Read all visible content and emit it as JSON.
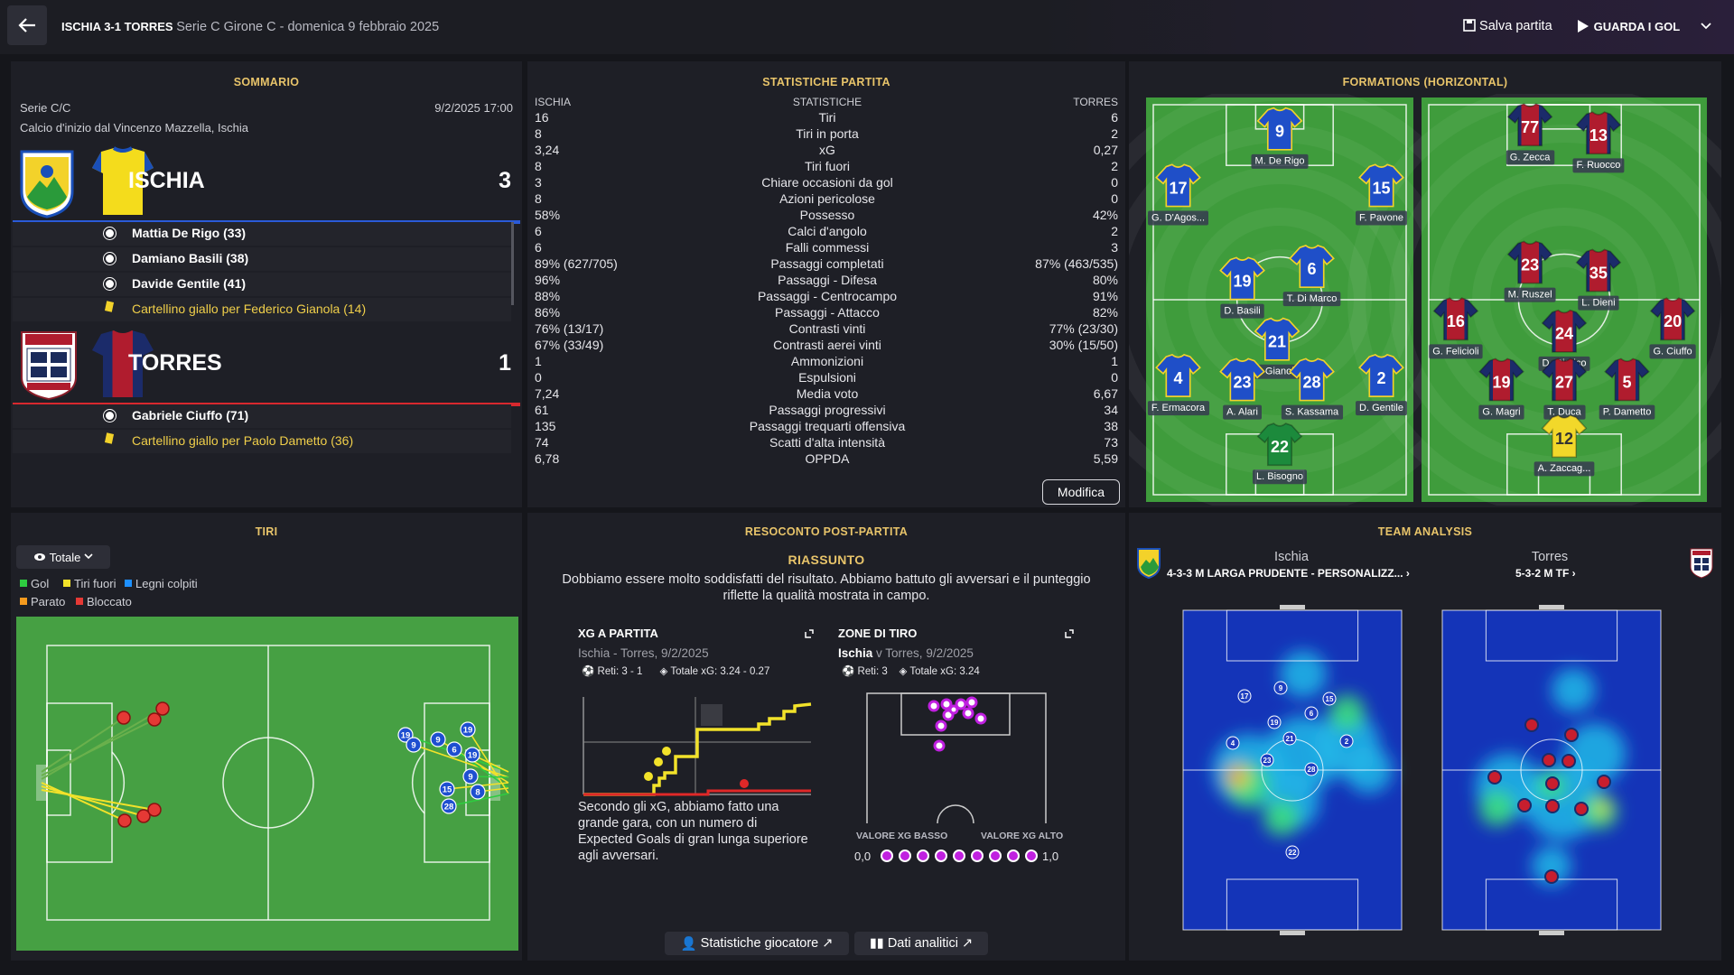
{
  "header": {
    "home": "ISCHIA",
    "score": "3-1",
    "away": "TORRES",
    "competition": "Serie C Girone C - domenica 9 febbraio 2025",
    "save": "Salva partita",
    "watch": "GUARDA I GOL"
  },
  "summary": {
    "title": "SOMMARIO",
    "competition": "Serie C/C",
    "datetime": "9/2/2025 17:00",
    "kickoff": "Calcio d'inizio dal Vincenzo Mazzella, Ischia",
    "teams": [
      {
        "name": "ISCHIA",
        "score": "3",
        "events": [
          {
            "kind": "goal",
            "text": "Mattia De Rigo (33)"
          },
          {
            "kind": "goal",
            "text": "Damiano Basili (38)"
          },
          {
            "kind": "goal",
            "text": "Davide Gentile (41)"
          },
          {
            "kind": "yellow",
            "text": "Cartellino giallo per Federico Gianola (14)"
          }
        ]
      },
      {
        "name": "TORRES",
        "score": "1",
        "events": [
          {
            "kind": "goal",
            "text": "Gabriele Ciuffo (71)"
          },
          {
            "kind": "yellow",
            "text": "Cartellino giallo per Paolo Dametto (36)"
          }
        ]
      }
    ]
  },
  "stats": {
    "title": "STATISTICHE PARTITA",
    "headers": [
      "ISCHIA",
      "STATISTICHE",
      "TORRES"
    ],
    "button": "Modifica",
    "rows": [
      [
        "16",
        "Tiri",
        "6"
      ],
      [
        "8",
        "Tiri in porta",
        "2"
      ],
      [
        "3,24",
        "xG",
        "0,27"
      ],
      [
        "8",
        "Tiri fuori",
        "2"
      ],
      [
        "3",
        "Chiare occasioni da gol",
        "0"
      ],
      [
        "8",
        "Azioni pericolose",
        "0"
      ],
      [
        "58%",
        "Possesso",
        "42%"
      ],
      [
        "6",
        "Calci d'angolo",
        "2"
      ],
      [
        "6",
        "Falli commessi",
        "3"
      ],
      [
        "89% (627/705)",
        "Passaggi completati",
        "87% (463/535)"
      ],
      [
        "96%",
        "Passaggi - Difesa",
        "80%"
      ],
      [
        "88%",
        "Passaggi - Centrocampo",
        "91%"
      ],
      [
        "86%",
        "Passaggi - Attacco",
        "82%"
      ],
      [
        "76% (13/17)",
        "Contrasti vinti",
        "77% (23/30)"
      ],
      [
        "67% (33/49)",
        "Contrasti aerei vinti",
        "30% (15/50)"
      ],
      [
        "1",
        "Ammonizioni",
        "1"
      ],
      [
        "0",
        "Espulsioni",
        "0"
      ],
      [
        "7,24",
        "Media voto",
        "6,67"
      ],
      [
        "61",
        "Passaggi progressivi",
        "34"
      ],
      [
        "135",
        "Passaggi trequarti offensiva",
        "38"
      ],
      [
        "74",
        "Scatti d'alta intensità",
        "73"
      ],
      [
        "6,78",
        "OPPDA",
        "5,59"
      ]
    ]
  },
  "formations": {
    "title": "FORMATIONS (HORIZONTAL)",
    "home": [
      {
        "number": "9",
        "name": "M. De Rigo"
      },
      {
        "number": "17",
        "name": "G. D'Agos..."
      },
      {
        "number": "15",
        "name": "F. Pavone"
      },
      {
        "number": "19",
        "name": "D. Basili"
      },
      {
        "number": "6",
        "name": "T. Di Marco"
      },
      {
        "number": "21",
        "name": "F. Gianola"
      },
      {
        "number": "4",
        "name": "F. Ermacora"
      },
      {
        "number": "23",
        "name": "A. Alari"
      },
      {
        "number": "28",
        "name": "S. Kassama"
      },
      {
        "number": "2",
        "name": "D. Gentile"
      },
      {
        "number": "22",
        "name": "L. Bisogno"
      }
    ],
    "away": [
      {
        "number": "77",
        "name": "G. Zecca"
      },
      {
        "number": "13",
        "name": "F. Ruocco"
      },
      {
        "number": "23",
        "name": "M. Ruszel"
      },
      {
        "number": "35",
        "name": "L. Dieni"
      },
      {
        "number": "16",
        "name": "G. Felicioli"
      },
      {
        "number": "24",
        "name": "D. Giorico"
      },
      {
        "number": "20",
        "name": "G. Ciuffo"
      },
      {
        "number": "19",
        "name": "G. Magri"
      },
      {
        "number": "27",
        "name": "T. Duca"
      },
      {
        "number": "5",
        "name": "P. Dametto"
      },
      {
        "number": "12",
        "name": "A. Zaccag..."
      }
    ]
  },
  "shots": {
    "title": "TIRI",
    "filter": "Totale",
    "legend": [
      "Gol",
      "Tiri fuori",
      "Legni colpiti",
      "Parato",
      "Bloccato"
    ],
    "markers": [
      "19",
      "9",
      "9",
      "6",
      "19",
      "19",
      "9",
      "15",
      "8",
      "28"
    ]
  },
  "report": {
    "title": "RESOCONTO POST-PARTITA",
    "subtitle": "RIASSUNTO",
    "text": "Dobbiamo essere molto soddisfatti del risultato. Abbiamo battuto gli avversari e il punteggio riflette la qualità mostrata in campo.",
    "xg": {
      "title": "XG A PARTITA",
      "subtitle": "Ischia - Torres, 9/2/2025",
      "goals": "Reti: 3 - 1",
      "total": "Totale xG: 3.24 - 0.27",
      "description": "Secondo gli xG, abbiamo fatto una grande gara, con un numero di Expected Goals di gran lunga superiore agli avversari."
    },
    "zones": {
      "title": "ZONE DI TIRO",
      "team": "Ischia",
      "rest": "v Torres, 9/2/2025",
      "goals": "Reti: 3",
      "total": "Totale xG: 3.24",
      "low": "VALORE XG BASSO",
      "high": "VALORE XG ALTO",
      "min": "0,0",
      "max": "1,0"
    },
    "buttons": [
      "Statistiche giocatore",
      "Dati analitici"
    ]
  },
  "analysis": {
    "title": "TEAM ANALYSIS",
    "home": "Ischia",
    "home_formation": "4-3-3 M LARGA PRUDENTE - PERSONALIZZ...",
    "away": "Torres",
    "away_formation": "5-3-2 M TF",
    "home_markers": [
      "17",
      "9",
      "15",
      "19",
      "6",
      "4",
      "21",
      "2",
      "23",
      "28",
      "22"
    ]
  }
}
